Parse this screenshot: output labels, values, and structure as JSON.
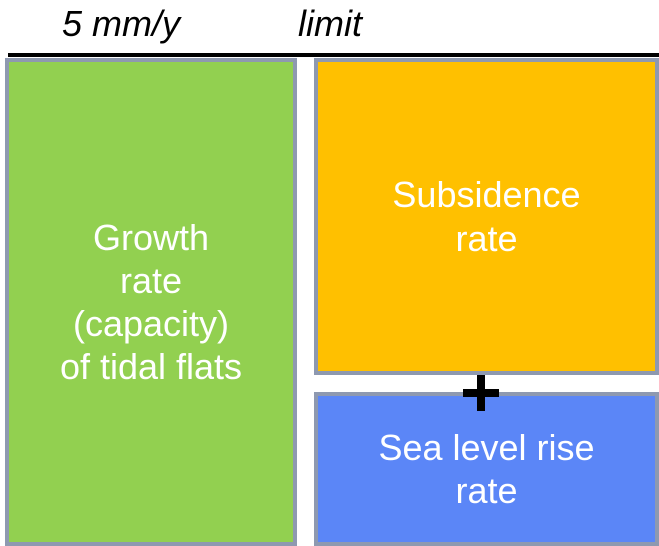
{
  "header": {
    "rate_text": "5 mm/y",
    "limit_text": "limit"
  },
  "boxes": {
    "growth": {
      "lines": [
        "Growth",
        "rate",
        "(capacity)",
        "of tidal flats"
      ],
      "color": "#92d050"
    },
    "subsidence": {
      "lines": [
        "Subsidence",
        "rate"
      ],
      "color": "#ffc000"
    },
    "sea_level_rise": {
      "lines": [
        "Sea level rise",
        "rate"
      ],
      "color": "#5b86f7"
    }
  },
  "operator": {
    "symbol": "plus-icon"
  },
  "colors": {
    "border": "#8e99b0",
    "line": "#000000",
    "text": "#ffffff"
  }
}
